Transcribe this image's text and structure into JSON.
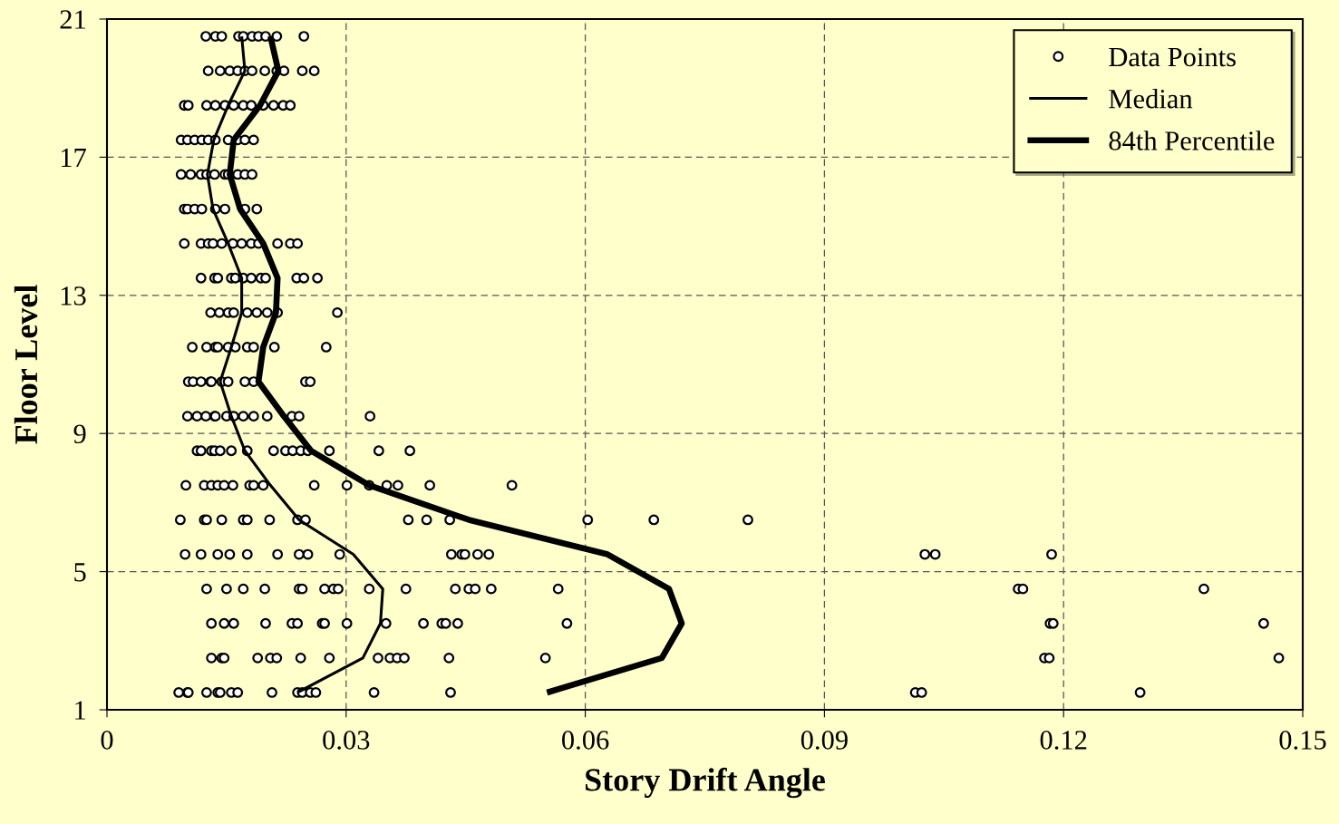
{
  "chart_data": {
    "type": "scatter",
    "xlabel": "Story Drift Angle",
    "ylabel": "Floor Level",
    "xlim": [
      0,
      0.15
    ],
    "xticks": [
      0,
      0.03,
      0.06,
      0.09,
      0.12,
      0.15
    ],
    "ylim": [
      1,
      21
    ],
    "yticks": [
      1,
      5,
      9,
      13,
      17,
      21
    ],
    "grid": true,
    "legend": "top right",
    "series": [
      {
        "name": "Data Points",
        "type": "scatter",
        "marker": "circle",
        "color": "#ffffff",
        "x": [
          0.0124,
          0.0136,
          0.0144,
          0.0165,
          0.0171,
          0.0182,
          0.019,
          0.0199,
          0.0213,
          0.0247,
          0.0127,
          0.0142,
          0.0154,
          0.0164,
          0.0173,
          0.0182,
          0.0198,
          0.0213,
          0.0222,
          0.0245,
          0.026,
          0.0097,
          0.0102,
          0.0125,
          0.0136,
          0.0148,
          0.0159,
          0.0171,
          0.0181,
          0.0196,
          0.0209,
          0.0221,
          0.023,
          0.0093,
          0.0101,
          0.011,
          0.0119,
          0.0127,
          0.0136,
          0.0152,
          0.0164,
          0.0173,
          0.0184,
          0.0093,
          0.0105,
          0.0118,
          0.0125,
          0.0135,
          0.0148,
          0.0152,
          0.0164,
          0.0173,
          0.0182,
          0.0097,
          0.0101,
          0.011,
          0.0119,
          0.0136,
          0.0148,
          0.0173,
          0.0188,
          0.0097,
          0.0118,
          0.0127,
          0.0133,
          0.0144,
          0.0158,
          0.0169,
          0.0181,
          0.019,
          0.0214,
          0.023,
          0.0239,
          0.0118,
          0.0135,
          0.0139,
          0.0156,
          0.0161,
          0.0171,
          0.0181,
          0.0193,
          0.0199,
          0.0238,
          0.0247,
          0.0264,
          0.013,
          0.0141,
          0.0152,
          0.0159,
          0.0176,
          0.0188,
          0.0201,
          0.0214,
          0.0289,
          0.0107,
          0.0125,
          0.0136,
          0.0139,
          0.0152,
          0.0161,
          0.0176,
          0.0184,
          0.021,
          0.0275,
          0.0102,
          0.0108,
          0.0118,
          0.013,
          0.0131,
          0.0144,
          0.0152,
          0.0173,
          0.0184,
          0.0249,
          0.0255,
          0.0101,
          0.0113,
          0.0124,
          0.0135,
          0.0136,
          0.015,
          0.0159,
          0.0171,
          0.0184,
          0.0201,
          0.0232,
          0.0241,
          0.033,
          0.0113,
          0.0118,
          0.0131,
          0.0135,
          0.0142,
          0.0156,
          0.0176,
          0.0209,
          0.0224,
          0.0233,
          0.0243,
          0.0252,
          0.0279,
          0.0341,
          0.038,
          0.0099,
          0.0122,
          0.0131,
          0.0139,
          0.0147,
          0.0158,
          0.0179,
          0.0184,
          0.0196,
          0.026,
          0.0301,
          0.0329,
          0.0351,
          0.0365,
          0.0405,
          0.0508,
          0.0092,
          0.0122,
          0.0125,
          0.0144,
          0.0171,
          0.0176,
          0.0204,
          0.0239,
          0.0249,
          0.0378,
          0.0401,
          0.043,
          0.0603,
          0.0686,
          0.0804,
          0.0098,
          0.0118,
          0.0139,
          0.0154,
          0.0176,
          0.0214,
          0.0241,
          0.0252,
          0.0292,
          0.0432,
          0.0445,
          0.0449,
          0.0465,
          0.0479,
          0.1026,
          0.1039,
          0.1185,
          0.0125,
          0.015,
          0.0171,
          0.0198,
          0.0241,
          0.0245,
          0.0273,
          0.0284,
          0.029,
          0.0329,
          0.0375,
          0.0437,
          0.0454,
          0.0462,
          0.0482,
          0.0566,
          0.1143,
          0.1149,
          0.1376,
          0.0131,
          0.0147,
          0.0159,
          0.0199,
          0.0232,
          0.0239,
          0.027,
          0.0273,
          0.0301,
          0.035,
          0.0397,
          0.042,
          0.0425,
          0.044,
          0.0577,
          0.1183,
          0.1187,
          0.1451,
          0.0131,
          0.0144,
          0.0147,
          0.0189,
          0.0205,
          0.0213,
          0.0243,
          0.0279,
          0.034,
          0.0355,
          0.0364,
          0.0373,
          0.0429,
          0.055,
          0.1176,
          0.1182,
          0.147,
          0.009,
          0.0101,
          0.0102,
          0.0125,
          0.0139,
          0.0142,
          0.0156,
          0.0164,
          0.0207,
          0.0239,
          0.0245,
          0.0255,
          0.0262,
          0.0335,
          0.0431,
          0.1014,
          0.1022,
          0.1296
        ],
        "values": [
          20.5,
          20.5,
          20.5,
          20.5,
          20.5,
          20.5,
          20.5,
          20.5,
          20.5,
          20.5,
          19.5,
          19.5,
          19.5,
          19.5,
          19.5,
          19.5,
          19.5,
          19.5,
          19.5,
          19.5,
          19.5,
          18.5,
          18.5,
          18.5,
          18.5,
          18.5,
          18.5,
          18.5,
          18.5,
          18.5,
          18.5,
          18.5,
          18.5,
          17.5,
          17.5,
          17.5,
          17.5,
          17.5,
          17.5,
          17.5,
          17.5,
          17.5,
          17.5,
          16.5,
          16.5,
          16.5,
          16.5,
          16.5,
          16.5,
          16.5,
          16.5,
          16.5,
          16.5,
          15.5,
          15.5,
          15.5,
          15.5,
          15.5,
          15.5,
          15.5,
          15.5,
          14.5,
          14.5,
          14.5,
          14.5,
          14.5,
          14.5,
          14.5,
          14.5,
          14.5,
          14.5,
          14.5,
          14.5,
          13.5,
          13.5,
          13.5,
          13.5,
          13.5,
          13.5,
          13.5,
          13.5,
          13.5,
          13.5,
          13.5,
          13.5,
          12.5,
          12.5,
          12.5,
          12.5,
          12.5,
          12.5,
          12.5,
          12.5,
          12.5,
          11.5,
          11.5,
          11.5,
          11.5,
          11.5,
          11.5,
          11.5,
          11.5,
          11.5,
          11.5,
          10.5,
          10.5,
          10.5,
          10.5,
          10.5,
          10.5,
          10.5,
          10.5,
          10.5,
          10.5,
          10.5,
          9.5,
          9.5,
          9.5,
          9.5,
          9.5,
          9.5,
          9.5,
          9.5,
          9.5,
          9.5,
          9.5,
          9.5,
          9.5,
          8.5,
          8.5,
          8.5,
          8.5,
          8.5,
          8.5,
          8.5,
          8.5,
          8.5,
          8.5,
          8.5,
          8.5,
          8.5,
          8.5,
          8.5,
          7.5,
          7.5,
          7.5,
          7.5,
          7.5,
          7.5,
          7.5,
          7.5,
          7.5,
          7.5,
          7.5,
          7.5,
          7.5,
          7.5,
          7.5,
          7.5,
          6.5,
          6.5,
          6.5,
          6.5,
          6.5,
          6.5,
          6.5,
          6.5,
          6.5,
          6.5,
          6.5,
          6.5,
          6.5,
          6.5,
          6.5,
          5.5,
          5.5,
          5.5,
          5.5,
          5.5,
          5.5,
          5.5,
          5.5,
          5.5,
          5.5,
          5.5,
          5.5,
          5.5,
          5.5,
          5.5,
          5.5,
          5.5,
          4.5,
          4.5,
          4.5,
          4.5,
          4.5,
          4.5,
          4.5,
          4.5,
          4.5,
          4.5,
          4.5,
          4.5,
          4.5,
          4.5,
          4.5,
          4.5,
          4.5,
          4.5,
          4.5,
          3.5,
          3.5,
          3.5,
          3.5,
          3.5,
          3.5,
          3.5,
          3.5,
          3.5,
          3.5,
          3.5,
          3.5,
          3.5,
          3.5,
          3.5,
          3.5,
          3.5,
          3.5,
          2.5,
          2.5,
          2.5,
          2.5,
          2.5,
          2.5,
          2.5,
          2.5,
          2.5,
          2.5,
          2.5,
          2.5,
          2.5,
          2.5,
          2.5,
          2.5,
          2.5,
          1.5,
          1.5,
          1.5,
          1.5,
          1.5,
          1.5,
          1.5,
          1.5,
          1.5,
          1.5,
          1.5,
          1.5,
          1.5,
          1.5,
          1.5,
          1.5,
          1.5,
          1.5
        ]
      },
      {
        "name": "Median",
        "type": "line",
        "color": "#000000",
        "x": [
          0.0169,
          0.0173,
          0.0152,
          0.0134,
          0.0126,
          0.0133,
          0.0152,
          0.0169,
          0.0169,
          0.0156,
          0.0142,
          0.0156,
          0.0173,
          0.0205,
          0.0241,
          0.0309,
          0.0346,
          0.0343,
          0.0321,
          0.0239
        ],
        "values": [
          20.5,
          19.5,
          18.5,
          17.5,
          16.5,
          15.5,
          14.5,
          13.5,
          12.5,
          11.5,
          10.5,
          9.5,
          8.5,
          7.5,
          6.5,
          5.5,
          4.5,
          3.5,
          2.5,
          1.5
        ]
      },
      {
        "name": "84th Percentile",
        "type": "line",
        "color": "#000000",
        "x": [
          0.0205,
          0.0215,
          0.0192,
          0.0159,
          0.0154,
          0.0167,
          0.0196,
          0.0214,
          0.0212,
          0.0196,
          0.019,
          0.0222,
          0.0256,
          0.0329,
          0.0454,
          0.0628,
          0.0705,
          0.0721,
          0.0696,
          0.0552
        ],
        "values": [
          20.5,
          19.5,
          18.5,
          17.5,
          16.5,
          15.5,
          14.5,
          13.5,
          12.5,
          11.5,
          10.5,
          9.5,
          8.5,
          7.5,
          6.5,
          5.5,
          4.5,
          3.5,
          2.5,
          1.5
        ]
      }
    ]
  }
}
